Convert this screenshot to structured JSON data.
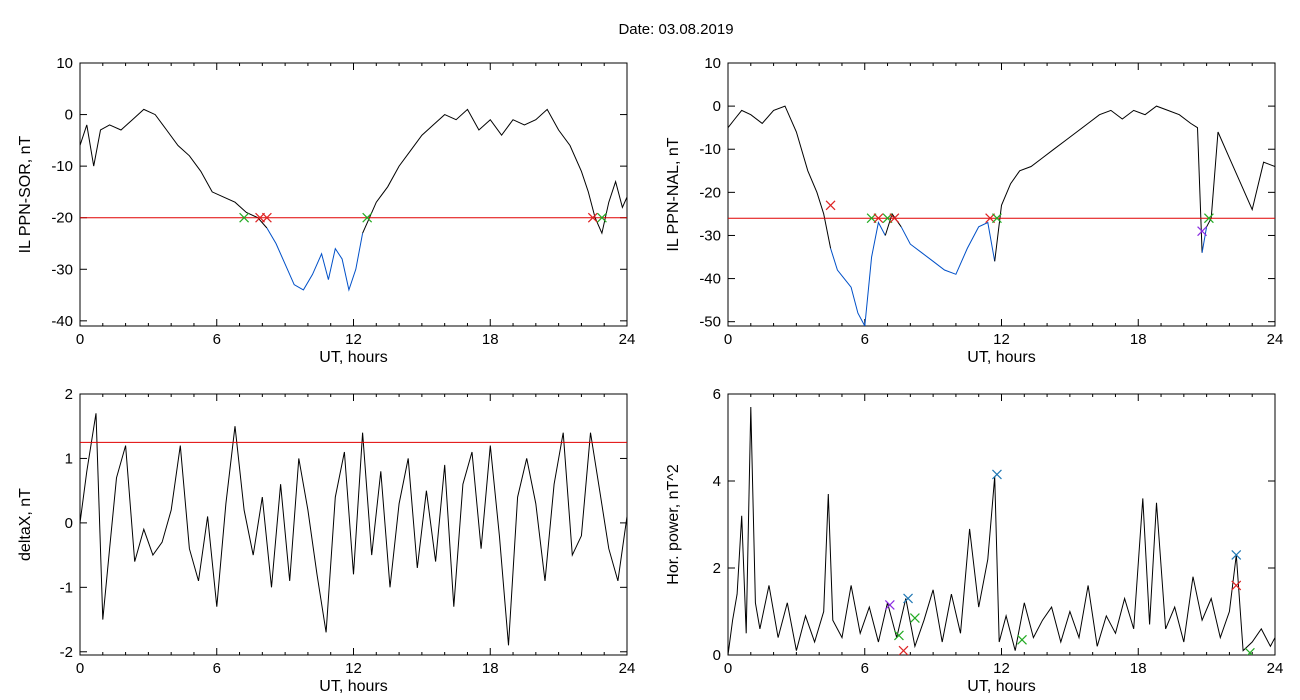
{
  "header": {
    "date_label": "Date:  03.08.2019"
  },
  "colors": {
    "trace": "#000000",
    "below_threshold": "#0050c8",
    "threshold": "#e00000",
    "marker_green": "#22aa22",
    "marker_red": "#dd2222",
    "marker_blue": "#1f77b4",
    "marker_purple": "#8a2be2"
  },
  "chart_data": [
    {
      "id": "sor",
      "type": "line",
      "title": "",
      "xlabel": "UT, hours",
      "ylabel": "IL PPN-SOR, nT",
      "xlim": [
        0,
        24
      ],
      "ylim": [
        -41,
        10
      ],
      "xticks": [
        "0",
        "6",
        "12",
        "18",
        "24"
      ],
      "yticks": [
        "10",
        "0",
        "-10",
        "-20",
        "-30",
        "-40"
      ],
      "threshold": -20,
      "x": [
        0,
        0.3,
        0.6,
        0.9,
        1.3,
        1.8,
        2.3,
        2.8,
        3.3,
        3.8,
        4.3,
        4.8,
        5.3,
        5.8,
        6.3,
        6.8,
        7.3,
        7.8,
        8.2,
        8.6,
        9.0,
        9.4,
        9.8,
        10.2,
        10.6,
        10.9,
        11.2,
        11.5,
        11.8,
        12.1,
        12.4,
        12.7,
        13.0,
        13.5,
        14.0,
        14.5,
        15.0,
        15.5,
        16.0,
        16.5,
        17.0,
        17.5,
        18.0,
        18.5,
        19.0,
        19.5,
        20.0,
        20.5,
        21.0,
        21.5,
        22.0,
        22.3,
        22.6,
        22.9,
        23.2,
        23.5,
        23.8,
        24
      ],
      "values": [
        -6,
        -2,
        -10,
        -3,
        -2,
        -3,
        -1,
        1,
        0,
        -3,
        -6,
        -8,
        -11,
        -15,
        -16,
        -17,
        -19,
        -20,
        -22,
        -25,
        -29,
        -33,
        -34,
        -31,
        -27,
        -32,
        -26,
        -28,
        -34,
        -30,
        -23,
        -20,
        -17,
        -14,
        -10,
        -7,
        -4,
        -2,
        0,
        -1,
        1,
        -3,
        -1,
        -4,
        -1,
        -2,
        -1,
        1,
        -3,
        -6,
        -11,
        -15,
        -20,
        -23,
        -17,
        -13,
        -18,
        -16
      ],
      "markers": [
        {
          "x": 7.2,
          "y": -20,
          "color": "marker_green"
        },
        {
          "x": 7.9,
          "y": -20,
          "color": "marker_red"
        },
        {
          "x": 8.2,
          "y": -20,
          "color": "marker_red"
        },
        {
          "x": 12.6,
          "y": -20,
          "color": "marker_green"
        },
        {
          "x": 22.5,
          "y": -20,
          "color": "marker_red"
        },
        {
          "x": 22.9,
          "y": -20,
          "color": "marker_green"
        }
      ]
    },
    {
      "id": "nal",
      "type": "line",
      "title": "",
      "xlabel": "UT, hours",
      "ylabel": "IL PPN-NAL, nT",
      "xlim": [
        0,
        24
      ],
      "ylim": [
        -51,
        10
      ],
      "xticks": [
        "0",
        "6",
        "12",
        "18",
        "24"
      ],
      "yticks": [
        "10",
        "0",
        "-10",
        "-20",
        "-30",
        "-40",
        "-50"
      ],
      "threshold": -26,
      "x": [
        0,
        0.3,
        0.6,
        1.0,
        1.5,
        2.0,
        2.5,
        3.0,
        3.5,
        3.9,
        4.2,
        4.5,
        4.8,
        5.1,
        5.4,
        5.7,
        6.0,
        6.3,
        6.6,
        6.9,
        7.2,
        7.6,
        8.0,
        8.5,
        9.0,
        9.5,
        10.0,
        10.5,
        11.0,
        11.4,
        11.7,
        12.0,
        12.4,
        12.8,
        13.3,
        13.8,
        14.3,
        14.8,
        15.3,
        15.8,
        16.3,
        16.8,
        17.3,
        17.8,
        18.3,
        18.8,
        19.3,
        19.8,
        20.3,
        20.6,
        20.8,
        21.0,
        21.2,
        21.5,
        22.0,
        22.5,
        23.0,
        23.5,
        24
      ],
      "values": [
        -5,
        -3,
        -1,
        -2,
        -4,
        -1,
        0,
        -6,
        -15,
        -20,
        -25,
        -33,
        -38,
        -40,
        -42,
        -48,
        -51,
        -35,
        -27,
        -30,
        -25,
        -28,
        -32,
        -34,
        -36,
        -38,
        -39,
        -33,
        -28,
        -27,
        -36,
        -23,
        -18,
        -15,
        -14,
        -12,
        -10,
        -8,
        -6,
        -4,
        -2,
        -1,
        -3,
        -1,
        -2,
        0,
        -1,
        -2,
        -4,
        -5,
        -34,
        -28,
        -26,
        -6,
        -12,
        -18,
        -24,
        -13,
        -14
      ],
      "markers": [
        {
          "x": 4.5,
          "y": -23,
          "color": "marker_red"
        },
        {
          "x": 6.3,
          "y": -26,
          "color": "marker_green"
        },
        {
          "x": 6.6,
          "y": -26,
          "color": "marker_red"
        },
        {
          "x": 7.0,
          "y": -26,
          "color": "marker_green"
        },
        {
          "x": 7.3,
          "y": -26,
          "color": "marker_red"
        },
        {
          "x": 11.5,
          "y": -26,
          "color": "marker_red"
        },
        {
          "x": 11.8,
          "y": -26,
          "color": "marker_green"
        },
        {
          "x": 20.8,
          "y": -29,
          "color": "marker_purple"
        },
        {
          "x": 21.1,
          "y": -26,
          "color": "marker_green"
        }
      ]
    },
    {
      "id": "deltax",
      "type": "line",
      "title": "",
      "xlabel": "UT, hours",
      "ylabel": "deltaX, nT",
      "xlim": [
        0,
        24
      ],
      "ylim": [
        -2.05,
        2.0
      ],
      "xticks": [
        "0",
        "6",
        "12",
        "18",
        "24"
      ],
      "yticks": [
        "2",
        "1",
        "0",
        "-1",
        "-2"
      ],
      "threshold": 1.25,
      "x": [
        0,
        0.3,
        0.7,
        1.0,
        1.3,
        1.6,
        2.0,
        2.4,
        2.8,
        3.2,
        3.6,
        4.0,
        4.4,
        4.8,
        5.2,
        5.6,
        6.0,
        6.4,
        6.8,
        7.2,
        7.6,
        8.0,
        8.4,
        8.8,
        9.2,
        9.6,
        10.0,
        10.4,
        10.8,
        11.2,
        11.6,
        12.0,
        12.4,
        12.8,
        13.2,
        13.6,
        14.0,
        14.4,
        14.8,
        15.2,
        15.6,
        16.0,
        16.4,
        16.8,
        17.2,
        17.6,
        18.0,
        18.4,
        18.8,
        19.2,
        19.6,
        20.0,
        20.4,
        20.8,
        21.2,
        21.6,
        22.0,
        22.4,
        22.8,
        23.2,
        23.6,
        24
      ],
      "values": [
        0,
        0.8,
        1.7,
        -1.5,
        -0.4,
        0.7,
        1.2,
        -0.6,
        -0.1,
        -0.5,
        -0.3,
        0.2,
        1.2,
        -0.4,
        -0.9,
        0.1,
        -1.3,
        0.3,
        1.5,
        0.2,
        -0.5,
        0.4,
        -1.0,
        0.6,
        -0.9,
        1.0,
        0.2,
        -0.8,
        -1.7,
        0.4,
        1.1,
        -0.8,
        1.4,
        -0.5,
        0.8,
        -1.0,
        0.3,
        1.0,
        -0.7,
        0.5,
        -0.6,
        0.9,
        -1.3,
        0.6,
        1.1,
        -0.4,
        1.2,
        -0.2,
        -1.9,
        0.4,
        1.0,
        0.3,
        -0.9,
        0.6,
        1.4,
        -0.5,
        -0.2,
        1.4,
        0.5,
        -0.4,
        -0.9,
        0.1
      ],
      "markers": []
    },
    {
      "id": "power",
      "type": "line",
      "title": "",
      "xlabel": "UT, hours",
      "ylabel": "Hor. power, nT^2",
      "xlim": [
        0,
        24
      ],
      "ylim": [
        0,
        6
      ],
      "xticks": [
        "0",
        "6",
        "12",
        "18",
        "24"
      ],
      "yticks": [
        "6",
        "4",
        "2",
        "0"
      ],
      "threshold": null,
      "x": [
        0,
        0.2,
        0.4,
        0.6,
        0.8,
        1.0,
        1.2,
        1.4,
        1.8,
        2.2,
        2.6,
        3.0,
        3.4,
        3.8,
        4.2,
        4.4,
        4.6,
        5.0,
        5.4,
        5.8,
        6.2,
        6.6,
        7.0,
        7.4,
        7.8,
        8.2,
        8.6,
        9.0,
        9.4,
        9.8,
        10.2,
        10.6,
        11.0,
        11.4,
        11.7,
        11.9,
        12.2,
        12.6,
        13.0,
        13.4,
        13.8,
        14.2,
        14.6,
        15.0,
        15.4,
        15.8,
        16.2,
        16.6,
        17.0,
        17.4,
        17.8,
        18.2,
        18.5,
        18.8,
        19.2,
        19.6,
        20.0,
        20.4,
        20.8,
        21.2,
        21.6,
        22.0,
        22.3,
        22.6,
        23.0,
        23.4,
        23.8,
        24
      ],
      "values": [
        0,
        0.8,
        1.4,
        3.2,
        0.5,
        5.7,
        1.2,
        0.6,
        1.6,
        0.4,
        1.2,
        0.1,
        0.9,
        0.3,
        1.0,
        3.7,
        0.8,
        0.4,
        1.6,
        0.5,
        1.1,
        0.3,
        1.2,
        0.4,
        1.3,
        0.2,
        0.8,
        1.5,
        0.3,
        1.4,
        0.5,
        2.9,
        1.1,
        2.2,
        4.1,
        0.3,
        0.9,
        0.1,
        1.2,
        0.4,
        0.8,
        1.1,
        0.3,
        1.0,
        0.4,
        1.6,
        0.2,
        0.9,
        0.5,
        1.3,
        0.6,
        3.6,
        0.7,
        3.5,
        0.6,
        1.1,
        0.3,
        1.8,
        0.8,
        1.3,
        0.4,
        1.0,
        2.3,
        0.1,
        0.3,
        0.6,
        0.2,
        0.4
      ],
      "markers": [
        {
          "x": 7.1,
          "y": 1.15,
          "color": "marker_purple"
        },
        {
          "x": 7.5,
          "y": 0.45,
          "color": "marker_green"
        },
        {
          "x": 7.7,
          "y": 0.1,
          "color": "marker_red"
        },
        {
          "x": 7.9,
          "y": 1.3,
          "color": "marker_blue"
        },
        {
          "x": 8.2,
          "y": 0.85,
          "color": "marker_green"
        },
        {
          "x": 11.8,
          "y": 4.15,
          "color": "marker_blue"
        },
        {
          "x": 12.9,
          "y": 0.35,
          "color": "marker_green"
        },
        {
          "x": 22.3,
          "y": 2.3,
          "color": "marker_blue"
        },
        {
          "x": 22.3,
          "y": 1.6,
          "color": "marker_red"
        },
        {
          "x": 22.9,
          "y": 0.05,
          "color": "marker_green"
        }
      ]
    }
  ]
}
